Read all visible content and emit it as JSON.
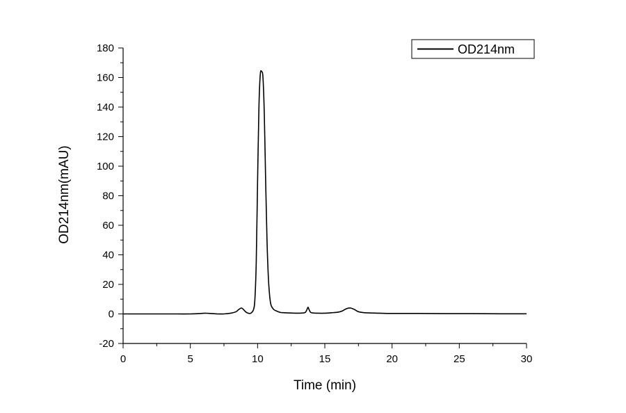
{
  "chart_data": {
    "type": "line",
    "title": "",
    "xlabel": "Time (min)",
    "ylabel": "OD214nm(mAU)",
    "xlim": [
      0,
      30
    ],
    "ylim": [
      -20,
      180
    ],
    "x_ticks": [
      0,
      5,
      10,
      15,
      20,
      25,
      30
    ],
    "x_tick_labels": [
      "0",
      "5",
      "10",
      "15",
      "20",
      "25",
      "30"
    ],
    "y_ticks": [
      -20,
      0,
      20,
      40,
      60,
      80,
      100,
      120,
      140,
      160,
      180
    ],
    "y_tick_labels": [
      "-20",
      "0",
      "20",
      "40",
      "60",
      "80",
      "100",
      "120",
      "140",
      "160",
      "180"
    ],
    "grid": false,
    "legend": {
      "position": "top-right",
      "entries": [
        "OD214nm"
      ]
    },
    "series": [
      {
        "name": "OD214nm",
        "color": "#000000",
        "x": [
          0,
          1,
          2,
          3,
          4,
          5,
          5.8,
          6.1,
          6.5,
          7,
          7.5,
          8,
          8.4,
          8.6,
          8.8,
          8.95,
          9.1,
          9.3,
          9.5,
          9.7,
          9.8,
          9.9,
          10.0,
          10.1,
          10.2,
          10.3,
          10.4,
          10.5,
          10.6,
          10.7,
          10.8,
          10.9,
          11.0,
          11.2,
          11.4,
          11.7,
          12.0,
          12.5,
          13.0,
          13.5,
          13.65,
          13.75,
          13.85,
          14.0,
          14.5,
          15.0,
          15.5,
          16.0,
          16.3,
          16.6,
          16.9,
          17.2,
          17.5,
          18.0,
          19,
          20,
          22,
          24,
          26,
          28,
          30
        ],
        "y": [
          0,
          0,
          0,
          0,
          0,
          0,
          0.3,
          0.5,
          0.3,
          0,
          0,
          0.5,
          1.5,
          3,
          4,
          3,
          1.5,
          0.5,
          0.5,
          3,
          10,
          35,
          90,
          140,
          162,
          164,
          160,
          135,
          90,
          50,
          25,
          12,
          6,
          3,
          2,
          1,
          0.8,
          0.6,
          0.5,
          0.8,
          2.5,
          4.5,
          2.5,
          0.8,
          0.5,
          0.5,
          0.8,
          1.2,
          2,
          3.5,
          4,
          3,
          1.5,
          0.8,
          0.5,
          0.3,
          0.3,
          0.2,
          0.2,
          0.1,
          0.1
        ]
      }
    ]
  }
}
